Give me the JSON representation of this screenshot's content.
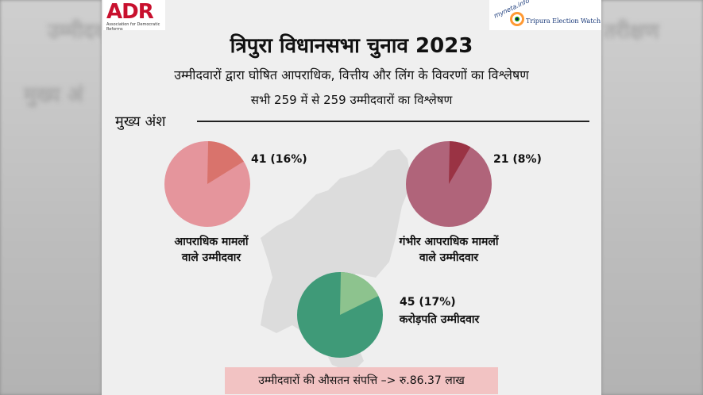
{
  "header": {
    "logo_left": {
      "text": "ADR",
      "subtext": "Association for Democratic Reforms"
    },
    "logo_right": {
      "site": "myneta.info",
      "name": "Tripura Election Watch"
    }
  },
  "title": "त्रिपुरा विधानसभा चुनाव 2023",
  "subtitle": "उम्मीदवारों द्वारा घोषित आपराधिक, वित्तीय और लिंग के विवरणों का विश्लेषण",
  "subtitle2": "सभी 259 में से 259 उम्मीदवारों का विश्लेषण",
  "section_label": "मुख्य अंश",
  "chart_data": [
    {
      "type": "pie",
      "value_label": "41 (16%)",
      "caption": [
        "आपराधिक मामलों",
        "वाले उम्मीदवार"
      ],
      "slices": [
        {
          "value": 41
        },
        {
          "value": 218
        }
      ],
      "percent": 16,
      "colors": [
        "#d9736c",
        "#e5959c"
      ]
    },
    {
      "type": "pie",
      "value_label": "21 (8%)",
      "caption": [
        "गंभीर आपराधिक मामलों",
        "वाले उम्मीदवार"
      ],
      "slices": [
        {
          "value": 21
        },
        {
          "value": 238
        }
      ],
      "percent": 8,
      "colors": [
        "#9a3344",
        "#b0647a"
      ]
    },
    {
      "type": "pie",
      "value_label": "45 (17%)",
      "caption": [
        "करोड़पति उम्मीदवार"
      ],
      "slices": [
        {
          "value": 45
        },
        {
          "value": 214
        }
      ],
      "percent": 17,
      "colors": [
        "#8dc38e",
        "#3f9a78"
      ]
    }
  ],
  "footer": "उम्मीदवारों की औसतन संपत्ति –> रु.86.37 लाख",
  "ghost_text": {
    "left_top": "उम्मीदवा",
    "left_mid": "मुख्य अं",
    "right_top": "तरीक्षण"
  }
}
